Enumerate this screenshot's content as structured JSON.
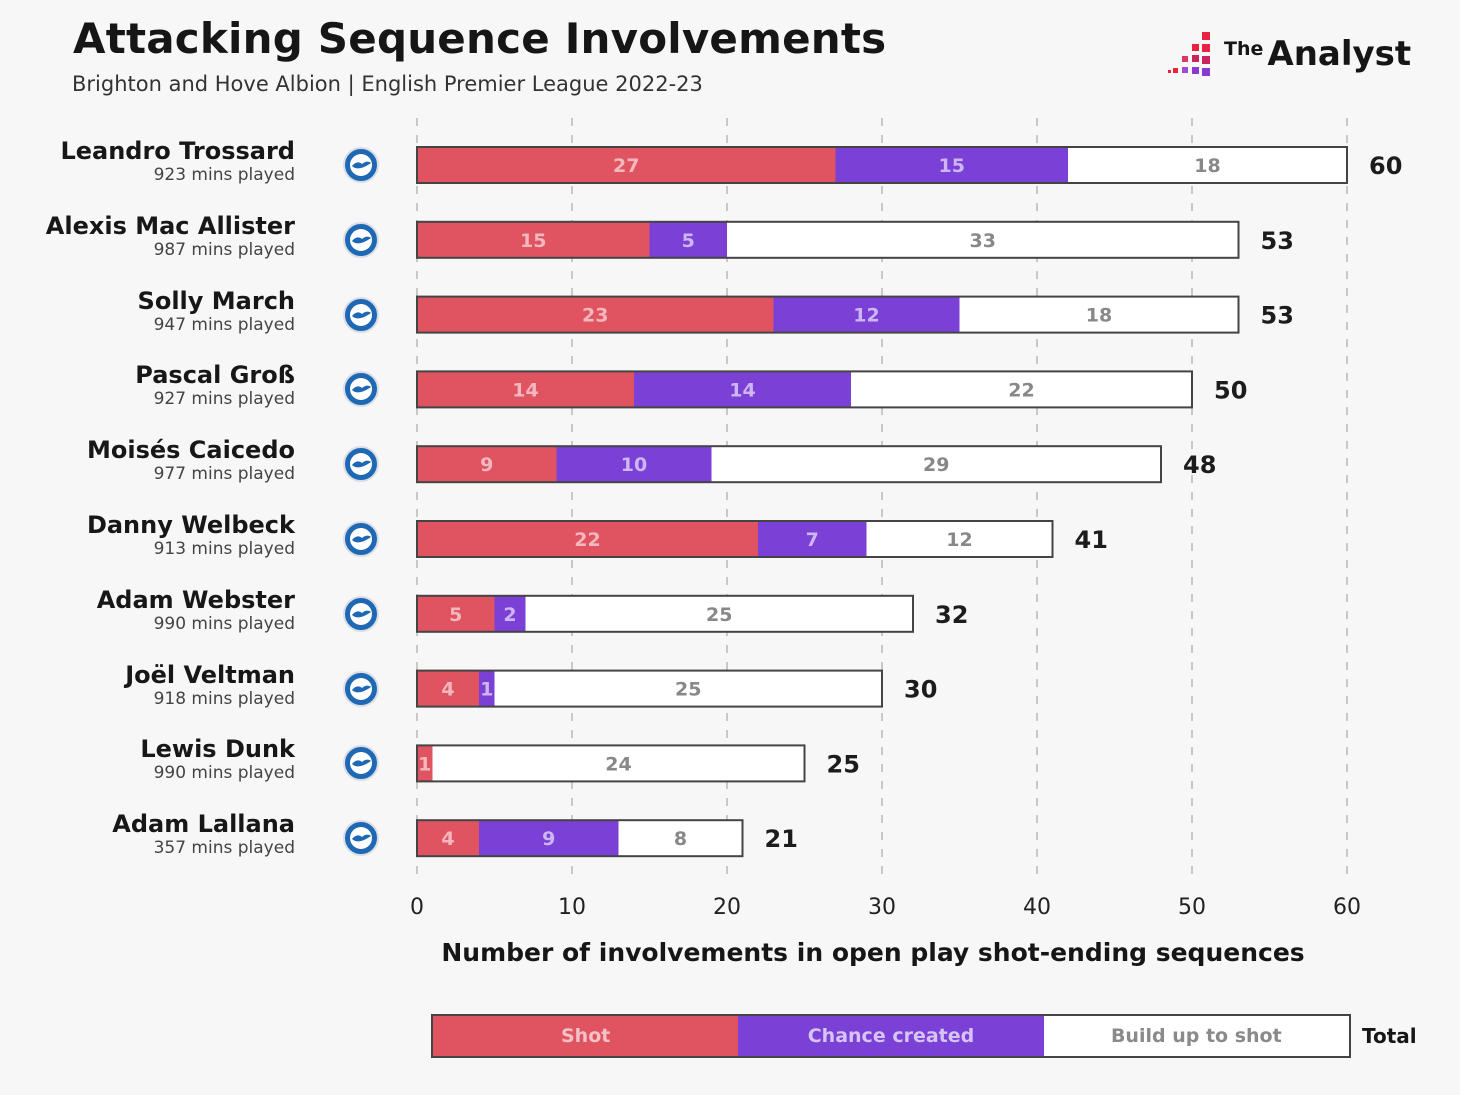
{
  "header": {
    "title": "Attacking Sequence Involvements",
    "subtitle": "Brighton and Hove Albion | English Premier League 2022-23"
  },
  "brand": {
    "the": "The",
    "name": "Analyst"
  },
  "colors": {
    "shot": "#e05462",
    "chance_created": "#7b40d6",
    "build_up": "#ffffff",
    "border": "#444444",
    "grid": "#c8c8c8",
    "crest": "#1f68b4"
  },
  "icons": {
    "crest": "brighton-crest-icon",
    "logo": "the-analyst-logo"
  },
  "players": [
    {
      "name": "Leandro Trossard",
      "mins": "923 mins played"
    },
    {
      "name": "Alexis Mac Allister",
      "mins": "987 mins played"
    },
    {
      "name": "Solly March",
      "mins": "947 mins played"
    },
    {
      "name": "Pascal Groß",
      "mins": "927 mins played"
    },
    {
      "name": "Moisés Caicedo",
      "mins": "977 mins played"
    },
    {
      "name": "Danny Welbeck",
      "mins": "913 mins played"
    },
    {
      "name": "Adam Webster",
      "mins": "990 mins played"
    },
    {
      "name": "Joël Veltman",
      "mins": "918 mins played"
    },
    {
      "name": "Lewis Dunk",
      "mins": "990 mins played"
    },
    {
      "name": "Adam Lallana",
      "mins": "357 mins played"
    }
  ],
  "legend": {
    "shot": "Shot",
    "chance_created": "Chance created",
    "build_up": "Build up to shot",
    "total": "Total"
  },
  "chart_data": {
    "type": "bar",
    "orientation": "horizontal",
    "stacked": true,
    "categories": [
      "Leandro Trossard",
      "Alexis Mac Allister",
      "Solly March",
      "Pascal Groß",
      "Moisés Caicedo",
      "Danny Welbeck",
      "Adam Webster",
      "Joël Veltman",
      "Lewis Dunk",
      "Adam Lallana"
    ],
    "series": [
      {
        "name": "Shot",
        "values": [
          27,
          15,
          23,
          14,
          9,
          22,
          5,
          4,
          1,
          4
        ]
      },
      {
        "name": "Chance created",
        "values": [
          15,
          5,
          12,
          14,
          10,
          7,
          2,
          1,
          0,
          9
        ]
      },
      {
        "name": "Build up to shot",
        "values": [
          18,
          33,
          18,
          22,
          29,
          12,
          25,
          25,
          24,
          8
        ]
      }
    ],
    "totals": [
      60,
      53,
      53,
      50,
      48,
      41,
      32,
      30,
      25,
      21
    ],
    "total_label": "Total",
    "xlabel": "Number of involvements in open play shot-ending sequences",
    "xlim": [
      0,
      60
    ],
    "xticks": [
      0,
      10,
      20,
      30,
      40,
      50,
      60
    ],
    "grid": "vertical-dashed",
    "legend_position": "bottom"
  }
}
